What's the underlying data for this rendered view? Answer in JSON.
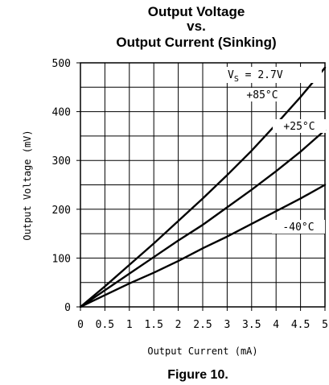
{
  "chart_data": {
    "type": "line",
    "title": "Output Voltage",
    "title_line2": "vs.",
    "title_line3": "Output Current (Sinking)",
    "xlabel": "Output Current (mA)",
    "ylabel": "Output Voltage (mV)",
    "caption": "Figure 10.",
    "xlim": [
      0,
      5
    ],
    "ylim": [
      0,
      500
    ],
    "grid": true,
    "x_ticks": [
      0,
      0.5,
      1,
      1.5,
      2,
      2.5,
      3,
      3.5,
      4,
      4.5,
      5
    ],
    "x_tick_labels": [
      "0",
      "0.5",
      "1",
      "1.5",
      "2",
      "2.5",
      "3",
      "3.5",
      "4",
      "4.5",
      "5"
    ],
    "y_ticks": [
      0,
      100,
      200,
      300,
      400,
      500
    ],
    "y_tick_labels": [
      "0",
      "100",
      "200",
      "300",
      "400",
      "500"
    ],
    "annotations": {
      "vs_main": "V",
      "vs_sub": "S",
      "vs_value": " = 2.7V"
    },
    "series": [
      {
        "name": "+85°C",
        "color": "#000000",
        "points": [
          [
            0,
            0
          ],
          [
            0.5,
            42
          ],
          [
            1,
            86
          ],
          [
            1.5,
            130
          ],
          [
            2,
            176
          ],
          [
            2.5,
            222
          ],
          [
            3,
            270
          ],
          [
            3.5,
            320
          ],
          [
            4,
            374
          ],
          [
            4.5,
            430
          ],
          [
            5,
            490
          ]
        ]
      },
      {
        "name": "+25°C",
        "color": "#000000",
        "points": [
          [
            0,
            0
          ],
          [
            0.5,
            34
          ],
          [
            1,
            68
          ],
          [
            1.5,
            102
          ],
          [
            2,
            136
          ],
          [
            2.5,
            168
          ],
          [
            3,
            204
          ],
          [
            3.5,
            240
          ],
          [
            4,
            278
          ],
          [
            4.5,
            318
          ],
          [
            5,
            362
          ]
        ]
      },
      {
        "name": "-40°C",
        "color": "#000000",
        "points": [
          [
            0,
            0
          ],
          [
            0.5,
            24
          ],
          [
            1,
            48
          ],
          [
            1.5,
            70
          ],
          [
            2,
            94
          ],
          [
            2.5,
            120
          ],
          [
            3,
            144
          ],
          [
            3.5,
            170
          ],
          [
            4,
            196
          ],
          [
            4.5,
            222
          ],
          [
            5,
            250
          ]
        ]
      }
    ]
  }
}
